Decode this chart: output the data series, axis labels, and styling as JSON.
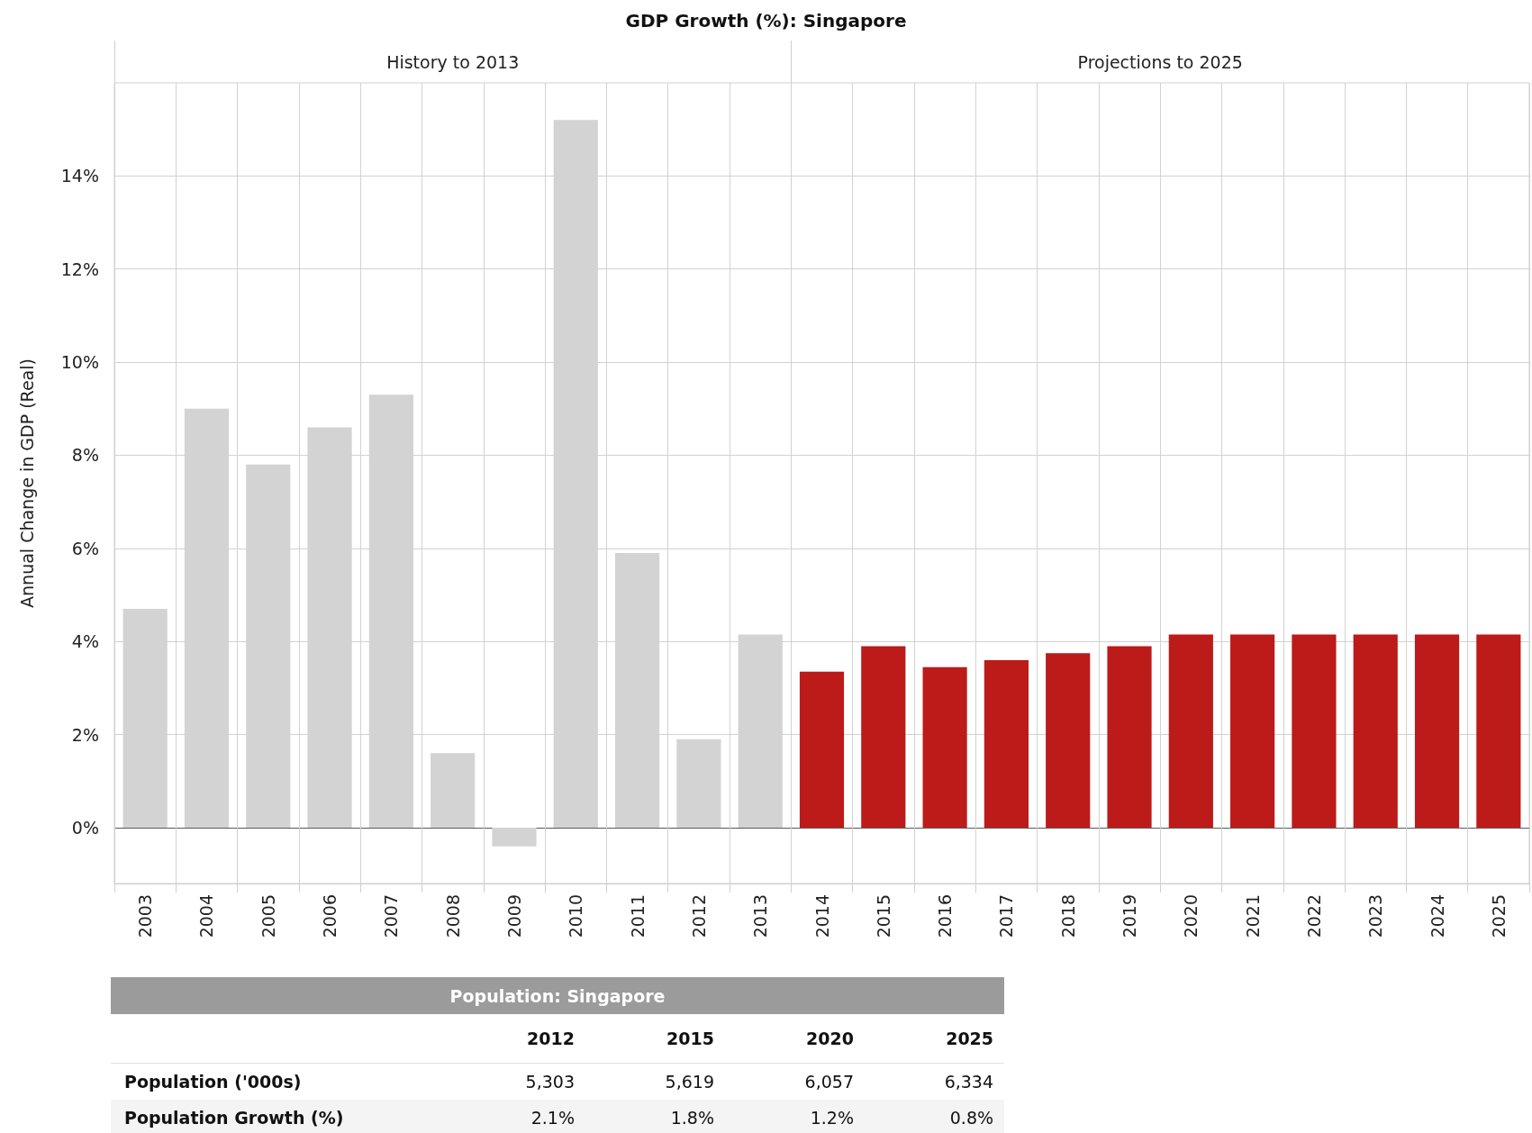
{
  "chart_data": [
    {
      "type": "bar",
      "title": "GDP Growth (%): Singapore",
      "ylabel": "Annual Change in GDP (Real)",
      "categories": [
        "2003",
        "2004",
        "2005",
        "2006",
        "2007",
        "2008",
        "2009",
        "2010",
        "2011",
        "2012",
        "2013",
        "2014",
        "2015",
        "2016",
        "2017",
        "2018",
        "2019",
        "2020",
        "2021",
        "2022",
        "2023",
        "2024",
        "2025"
      ],
      "values": [
        4.7,
        9.0,
        7.8,
        8.6,
        9.3,
        1.6,
        -0.4,
        15.2,
        5.9,
        1.9,
        4.15,
        3.35,
        3.9,
        3.45,
        3.6,
        3.75,
        3.9,
        4.15,
        4.15,
        4.15,
        4.15,
        4.15,
        4.15
      ],
      "colors": [
        "#d3d3d3",
        "#d3d3d3",
        "#d3d3d3",
        "#d3d3d3",
        "#d3d3d3",
        "#d3d3d3",
        "#d3d3d3",
        "#d3d3d3",
        "#d3d3d3",
        "#d3d3d3",
        "#d3d3d3",
        "#bd1a1a",
        "#bd1a1a",
        "#bd1a1a",
        "#bd1a1a",
        "#bd1a1a",
        "#bd1a1a",
        "#bd1a1a",
        "#bd1a1a",
        "#bd1a1a",
        "#bd1a1a",
        "#bd1a1a",
        "#bd1a1a"
      ],
      "ylim": [
        -1.2,
        16
      ],
      "yticks": [
        {
          "value": 0,
          "label": "0%"
        },
        {
          "value": 2,
          "label": "2%"
        },
        {
          "value": 4,
          "label": "4%"
        },
        {
          "value": 6,
          "label": "6%"
        },
        {
          "value": 8,
          "label": "8%"
        },
        {
          "value": 10,
          "label": "10%"
        },
        {
          "value": 12,
          "label": "12%"
        },
        {
          "value": 14,
          "label": "14%"
        }
      ],
      "grid": true,
      "annotations": [
        "History to 2013",
        "Projections to 2025"
      ]
    },
    {
      "type": "other",
      "title": "Population: Singapore",
      "categories": [
        "2012",
        "2015",
        "2020",
        "2025"
      ],
      "series": [
        {
          "name": "Population ('000s)",
          "values": [
            5303,
            5619,
            6057,
            6334
          ],
          "value_labels": [
            "5,303",
            "5,619",
            "6,057",
            "6,334"
          ]
        },
        {
          "name": "Population Growth (%)",
          "values": [
            2.1,
            1.8,
            1.2,
            0.8
          ],
          "value_labels": [
            "2.1%",
            "1.8%",
            "1.2%",
            "0.8%"
          ]
        }
      ]
    }
  ]
}
